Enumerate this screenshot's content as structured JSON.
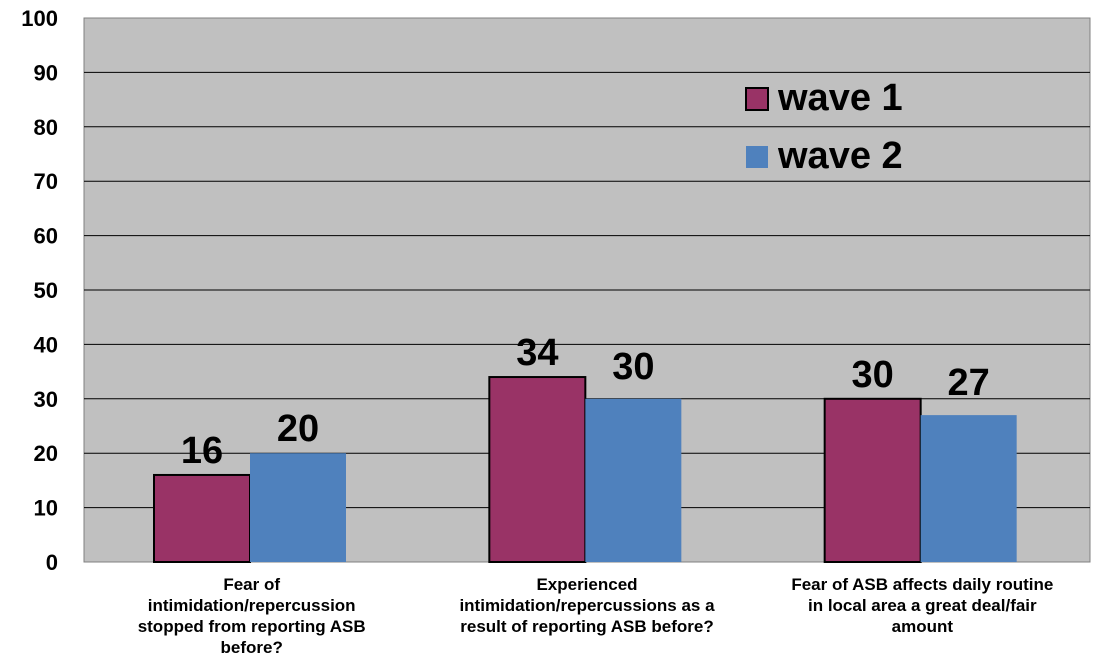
{
  "chart_data": {
    "type": "bar",
    "categories": [
      [
        "Fear of",
        "intimidation/repercussion",
        "stopped from reporting ASB",
        "before?"
      ],
      [
        "Experienced",
        "intimidation/repercussions as a",
        "result of reporting ASB before?"
      ],
      [
        "Fear of ASB affects daily routine",
        "in local area a great deal/fair",
        "amount"
      ]
    ],
    "series": [
      {
        "name": "wave 1",
        "values": [
          16,
          34,
          30
        ],
        "color": "#993366"
      },
      {
        "name": "wave 2",
        "values": [
          20,
          30,
          27
        ],
        "color": "#4F81BD"
      }
    ],
    "data_labels": true,
    "ylim": [
      0,
      100
    ],
    "yticks": [
      0,
      10,
      20,
      30,
      40,
      50,
      60,
      70,
      80,
      90,
      100
    ],
    "grid": true,
    "legend_position": "top-right",
    "plot_background": "#C0C0C0",
    "title": "",
    "xlabel": "",
    "ylabel": ""
  }
}
